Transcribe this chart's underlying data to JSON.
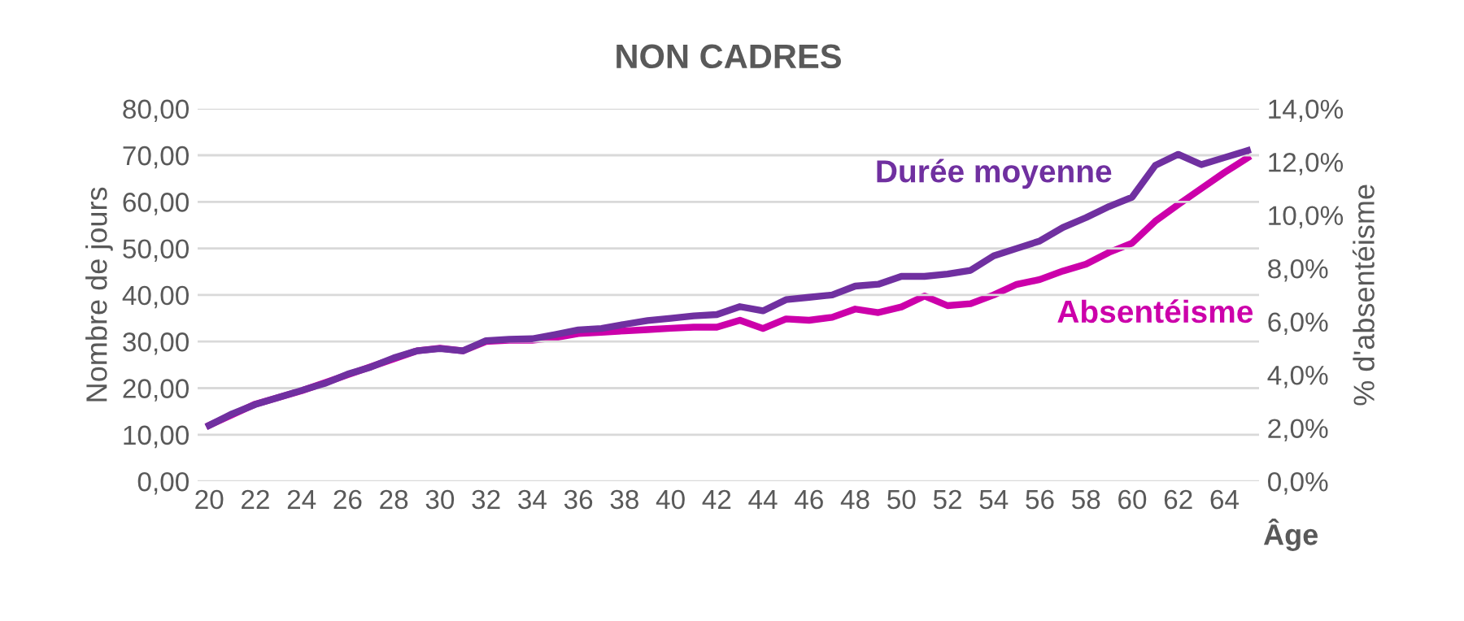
{
  "chart_data": {
    "type": "line",
    "title": "NON CADRES",
    "xlabel": "Âge",
    "ylabel": "Nombre de jours",
    "y2label": "% d'absentéisme",
    "categories": [
      "20",
      null,
      "22",
      null,
      "24",
      null,
      "26",
      null,
      "28",
      null,
      "30",
      null,
      "32",
      null,
      "34",
      null,
      "36",
      null,
      "38",
      null,
      "40",
      null,
      "42",
      null,
      "44",
      null,
      "46",
      null,
      "48",
      null,
      "50",
      null,
      "52",
      null,
      "54",
      null,
      "56",
      null,
      "58",
      null,
      "60",
      null,
      "62",
      null,
      "64",
      null
    ],
    "series": [
      {
        "name": "Durée moyenne",
        "color": "#7030a0",
        "values": [
          12,
          14.5,
          16.5,
          18,
          19.5,
          21,
          23,
          24.5,
          26.5,
          28,
          28.5,
          28,
          30.2,
          30.5,
          30.6,
          31.5,
          32.5,
          32.8,
          33.7,
          34.5,
          35,
          35.5,
          35.8,
          37.5,
          36.6,
          39,
          39.5,
          40,
          41.9,
          42.3,
          44,
          44,
          44.5,
          45.3,
          48.4,
          50,
          51.6,
          54.5,
          56.6,
          59,
          61,
          67.8,
          70.2,
          68,
          69.5,
          71
        ]
      },
      {
        "name": "Absentéisme",
        "color": "#cc00aa",
        "axis": "y2",
        "values": [
          2.1,
          2.5,
          2.9,
          3.15,
          3.4,
          3.7,
          4.0,
          4.3,
          4.6,
          4.9,
          5.0,
          4.9,
          5.25,
          5.3,
          5.3,
          5.4,
          5.55,
          5.6,
          5.65,
          5.7,
          5.75,
          5.79,
          5.79,
          6.05,
          5.74,
          6.1,
          6.05,
          6.16,
          6.47,
          6.34,
          6.55,
          6.96,
          6.6,
          6.67,
          7.0,
          7.4,
          7.58,
          7.9,
          8.16,
          8.6,
          8.95,
          9.77,
          10.4,
          11.0,
          11.6,
          12.15
        ]
      }
    ],
    "ylim": [
      0,
      80
    ],
    "yticks": [
      {
        "value": 0,
        "label": "0,00"
      },
      {
        "value": 10,
        "label": "10,00"
      },
      {
        "value": 20,
        "label": "20,00"
      },
      {
        "value": 30,
        "label": "30,00"
      },
      {
        "value": 40,
        "label": "40,00"
      },
      {
        "value": 50,
        "label": "50,00"
      },
      {
        "value": 60,
        "label": "60,00"
      },
      {
        "value": 70,
        "label": "70,00"
      },
      {
        "value": 80,
        "label": "80,00"
      }
    ],
    "y2lim": [
      0,
      14
    ],
    "y2ticks": [
      {
        "value": 0,
        "label": "0,0%"
      },
      {
        "value": 2,
        "label": "2,0%"
      },
      {
        "value": 4,
        "label": "4,0%"
      },
      {
        "value": 6,
        "label": "6,0%"
      },
      {
        "value": 8,
        "label": "8,0%"
      },
      {
        "value": 10,
        "label": "10,0%"
      },
      {
        "value": 12,
        "label": "12,0%"
      },
      {
        "value": 14,
        "label": "14,0%"
      }
    ],
    "grid": "y",
    "legend": false,
    "marker": "none",
    "line_style": "solid"
  }
}
